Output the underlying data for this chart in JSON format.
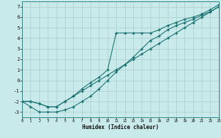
{
  "xlabel": "Humidex (Indice chaleur)",
  "bg_color": "#c8eaea",
  "grid_color": "#a8cccc",
  "line_color": "#1a7070",
  "xlim": [
    0,
    23
  ],
  "ylim": [
    -3.5,
    7.5
  ],
  "xticks": [
    0,
    1,
    2,
    3,
    4,
    5,
    6,
    7,
    8,
    9,
    10,
    11,
    12,
    13,
    14,
    15,
    16,
    17,
    18,
    19,
    20,
    21,
    22,
    23
  ],
  "yticks": [
    -3,
    -2,
    -1,
    0,
    1,
    2,
    3,
    4,
    5,
    6,
    7
  ],
  "curve_straight_x": [
    0,
    1,
    2,
    3,
    4,
    5,
    6,
    7,
    8,
    9,
    10,
    11,
    12,
    13,
    14,
    15,
    16,
    17,
    18,
    19,
    20,
    21,
    22,
    23
  ],
  "curve_straight_y": [
    -2.0,
    -2.0,
    -2.2,
    -2.5,
    -2.5,
    -2.0,
    -1.5,
    -1.0,
    -0.5,
    0.0,
    0.5,
    1.0,
    1.5,
    2.0,
    2.5,
    3.0,
    3.5,
    4.0,
    4.5,
    5.0,
    5.5,
    6.0,
    6.5,
    7.0
  ],
  "curve_dip_x": [
    0,
    1,
    2,
    3,
    4,
    5,
    6,
    7,
    8,
    9,
    10,
    11,
    12,
    13,
    14,
    15,
    16,
    17,
    18,
    19,
    20,
    21,
    22,
    23
  ],
  "curve_dip_y": [
    -2.0,
    -2.5,
    -3.0,
    -3.0,
    -3.0,
    -2.8,
    -2.5,
    -2.0,
    -1.5,
    -0.8,
    0.0,
    0.8,
    1.5,
    2.2,
    3.0,
    3.8,
    4.2,
    4.8,
    5.2,
    5.5,
    5.8,
    6.2,
    6.5,
    7.0
  ],
  "curve_spike_x": [
    0,
    1,
    2,
    3,
    4,
    5,
    6,
    7,
    8,
    9,
    10,
    11,
    12,
    13,
    14,
    15,
    16,
    17,
    18,
    19,
    20,
    21,
    22,
    23
  ],
  "curve_spike_y": [
    -2.0,
    -2.0,
    -2.2,
    -2.5,
    -2.5,
    -2.0,
    -1.5,
    -0.8,
    -0.2,
    0.3,
    1.0,
    4.5,
    4.5,
    4.5,
    4.5,
    4.5,
    4.8,
    5.2,
    5.5,
    5.8,
    6.0,
    6.3,
    6.7,
    7.2
  ]
}
